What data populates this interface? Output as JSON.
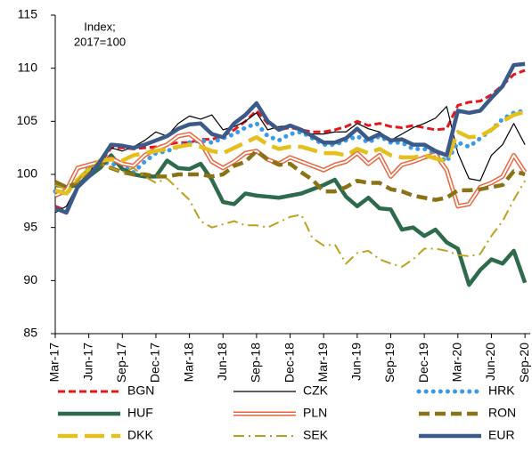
{
  "chart_data": {
    "type": "line",
    "annotation": [
      "Index;",
      "2017=100"
    ],
    "categories": [
      "Mar-17",
      null,
      null,
      "Jun-17",
      null,
      null,
      "Sep-17",
      null,
      null,
      "Dec-17",
      null,
      null,
      "Mar-18",
      null,
      null,
      "Jun-18",
      null,
      null,
      "Sep-18",
      null,
      null,
      "Dec-18",
      null,
      null,
      "Mar-19",
      null,
      null,
      "Jun-19",
      null,
      null,
      "Sep-19",
      null,
      null,
      "Dec-19",
      null,
      null,
      "Mar-20",
      null,
      null,
      "Jun-20",
      null,
      null,
      "Sep-20"
    ],
    "ylim": [
      85,
      115
    ],
    "yticks": [
      85,
      90,
      95,
      100,
      105,
      110,
      115
    ],
    "series": [
      {
        "name": "BGN",
        "color": "#e8141c",
        "style": "dashed",
        "values": [
          97.0,
          96.6,
          98.8,
          100.0,
          101.0,
          102.5,
          102.5,
          102.4,
          102.5,
          102.6,
          102.8,
          103.0,
          103.0,
          103.3,
          103.3,
          103.6,
          104.2,
          105.0,
          106.0,
          104.8,
          104.2,
          104.4,
          104.2,
          104.0,
          104.0,
          104.2,
          104.5,
          105.0,
          104.6,
          104.8,
          104.5,
          104.4,
          104.6,
          104.4,
          104.2,
          104.3,
          106.5,
          106.8,
          106.9,
          107.5,
          108.4,
          109.4,
          109.8
        ]
      },
      {
        "name": "CZK",
        "color": "#000000",
        "style": "thin",
        "values": [
          96.4,
          97.0,
          99.0,
          100.2,
          101.4,
          102.5,
          102.2,
          102.6,
          103.2,
          104.0,
          103.6,
          104.8,
          105.5,
          105.2,
          105.6,
          104.2,
          104.5,
          105.0,
          105.8,
          104.2,
          104.5,
          104.6,
          104.0,
          103.8,
          103.8,
          104.0,
          104.0,
          104.8,
          104.3,
          104.0,
          103.2,
          103.8,
          104.4,
          104.8,
          105.3,
          106.4,
          102.0,
          99.6,
          99.4,
          101.8,
          102.8,
          104.8,
          102.8
        ]
      },
      {
        "name": "HRK",
        "color": "#3a9ae8",
        "style": "dotted",
        "values": [
          98.4,
          98.2,
          99.4,
          100.6,
          101.2,
          101.0,
          100.8,
          100.2,
          101.2,
          102.0,
          102.2,
          102.6,
          103.0,
          103.2,
          103.0,
          103.4,
          103.8,
          104.4,
          104.8,
          103.6,
          103.2,
          103.8,
          104.0,
          103.4,
          102.8,
          102.8,
          103.2,
          103.6,
          103.0,
          103.6,
          103.0,
          103.0,
          102.4,
          102.4,
          102.0,
          101.2,
          103.0,
          102.6,
          103.4,
          104.2,
          105.2,
          105.8,
          106.0
        ]
      },
      {
        "name": "HUF",
        "color": "#2e6b4c",
        "style": "thick",
        "values": [
          99.0,
          98.8,
          99.0,
          99.8,
          100.6,
          101.8,
          100.5,
          100.0,
          99.8,
          99.8,
          101.3,
          100.6,
          100.5,
          101.0,
          99.5,
          97.4,
          97.2,
          98.2,
          98.0,
          97.9,
          97.8,
          98.0,
          98.2,
          98.6,
          99.0,
          99.5,
          97.9,
          97.0,
          97.8,
          96.8,
          96.7,
          94.8,
          95.0,
          94.2,
          94.8,
          93.6,
          93.0,
          89.6,
          91.0,
          92.0,
          91.6,
          92.8,
          89.8
        ]
      },
      {
        "name": "PLN",
        "color": "#e9653e",
        "style": "double",
        "values": [
          98.0,
          98.5,
          100.6,
          100.9,
          101.2,
          101.5,
          101.0,
          100.8,
          101.8,
          102.4,
          102.8,
          103.6,
          103.8,
          103.0,
          101.2,
          100.6,
          101.2,
          102.0,
          102.2,
          101.4,
          101.0,
          101.6,
          101.2,
          100.8,
          100.4,
          100.9,
          101.2,
          102.0,
          101.0,
          101.8,
          99.8,
          100.9,
          101.2,
          101.6,
          101.9,
          100.4,
          97.0,
          97.2,
          98.8,
          99.2,
          99.8,
          101.8,
          100.2
        ]
      },
      {
        "name": "RON",
        "color": "#8a7316",
        "style": "dashed-thick",
        "values": [
          99.3,
          98.8,
          99.2,
          100.4,
          101.0,
          100.6,
          100.2,
          100.0,
          100.0,
          99.8,
          99.8,
          100.0,
          100.0,
          100.0,
          99.8,
          100.0,
          100.8,
          101.2,
          102.2,
          101.4,
          100.9,
          101.0,
          100.2,
          99.5,
          98.4,
          98.4,
          98.8,
          99.4,
          99.2,
          99.2,
          98.6,
          98.4,
          98.0,
          97.8,
          97.6,
          97.8,
          98.5,
          98.5,
          98.6,
          98.8,
          99.0,
          100.3,
          100.0
        ]
      },
      {
        "name": "DKK",
        "color": "#e3c01c",
        "style": "long-dash",
        "values": [
          98.5,
          98.2,
          99.5,
          100.5,
          101.3,
          101.4,
          101.3,
          101.8,
          102.0,
          102.2,
          102.4,
          102.6,
          102.8,
          102.6,
          102.2,
          102.0,
          102.5,
          103.0,
          103.5,
          102.8,
          102.4,
          102.6,
          102.6,
          102.3,
          102.0,
          102.0,
          101.8,
          102.4,
          102.0,
          102.4,
          101.8,
          101.6,
          101.6,
          101.8,
          101.5,
          101.2,
          104.0,
          103.5,
          103.6,
          104.2,
          105.0,
          105.6,
          105.9
        ]
      },
      {
        "name": "SEK",
        "color": "#bba21e",
        "style": "dash-dot",
        "values": [
          99.0,
          98.6,
          99.4,
          100.6,
          101.0,
          100.6,
          100.2,
          100.6,
          99.8,
          99.2,
          99.6,
          98.6,
          97.6,
          95.6,
          95.0,
          95.3,
          95.6,
          95.2,
          95.2,
          95.0,
          95.5,
          96.0,
          96.2,
          94.0,
          93.3,
          93.4,
          91.6,
          92.6,
          92.8,
          92.0,
          91.6,
          91.3,
          92.0,
          93.0,
          93.0,
          92.8,
          92.4,
          92.3,
          92.5,
          94.2,
          95.6,
          97.6,
          99.4
        ]
      },
      {
        "name": "EUR",
        "color": "#3b5a8a",
        "style": "thick",
        "values": [
          96.8,
          96.4,
          98.8,
          99.8,
          101.2,
          102.8,
          102.7,
          102.5,
          102.8,
          103.2,
          103.6,
          104.3,
          104.7,
          104.8,
          103.8,
          103.5,
          104.8,
          105.6,
          106.7,
          105.0,
          104.2,
          104.6,
          104.2,
          103.6,
          103.0,
          103.0,
          103.4,
          104.3,
          103.3,
          103.8,
          103.2,
          103.3,
          102.8,
          102.8,
          102.2,
          101.8,
          106.0,
          105.8,
          106.0,
          107.2,
          108.3,
          110.3,
          110.4
        ]
      }
    ]
  }
}
